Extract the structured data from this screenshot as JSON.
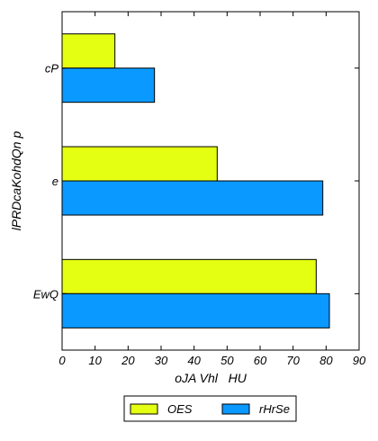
{
  "chart_data": {
    "type": "bar",
    "orientation": "horizontal",
    "categories": [
      "cP",
      "e",
      "EwQ"
    ],
    "series": [
      {
        "name": "OES",
        "color": "#e5ff12",
        "values": [
          16,
          47,
          77
        ]
      },
      {
        "name": "rHrSe",
        "color": "#0a99ff",
        "values": [
          28,
          79,
          81
        ]
      }
    ],
    "xlabel": "oJA Vhl   HU",
    "ylabel": "lPRDcaKohdQn p",
    "xlim": [
      0,
      90
    ],
    "xticks": [
      0,
      10,
      20,
      30,
      40,
      50,
      60,
      70,
      80,
      90
    ],
    "grid": false,
    "legend_position": "bottom"
  }
}
